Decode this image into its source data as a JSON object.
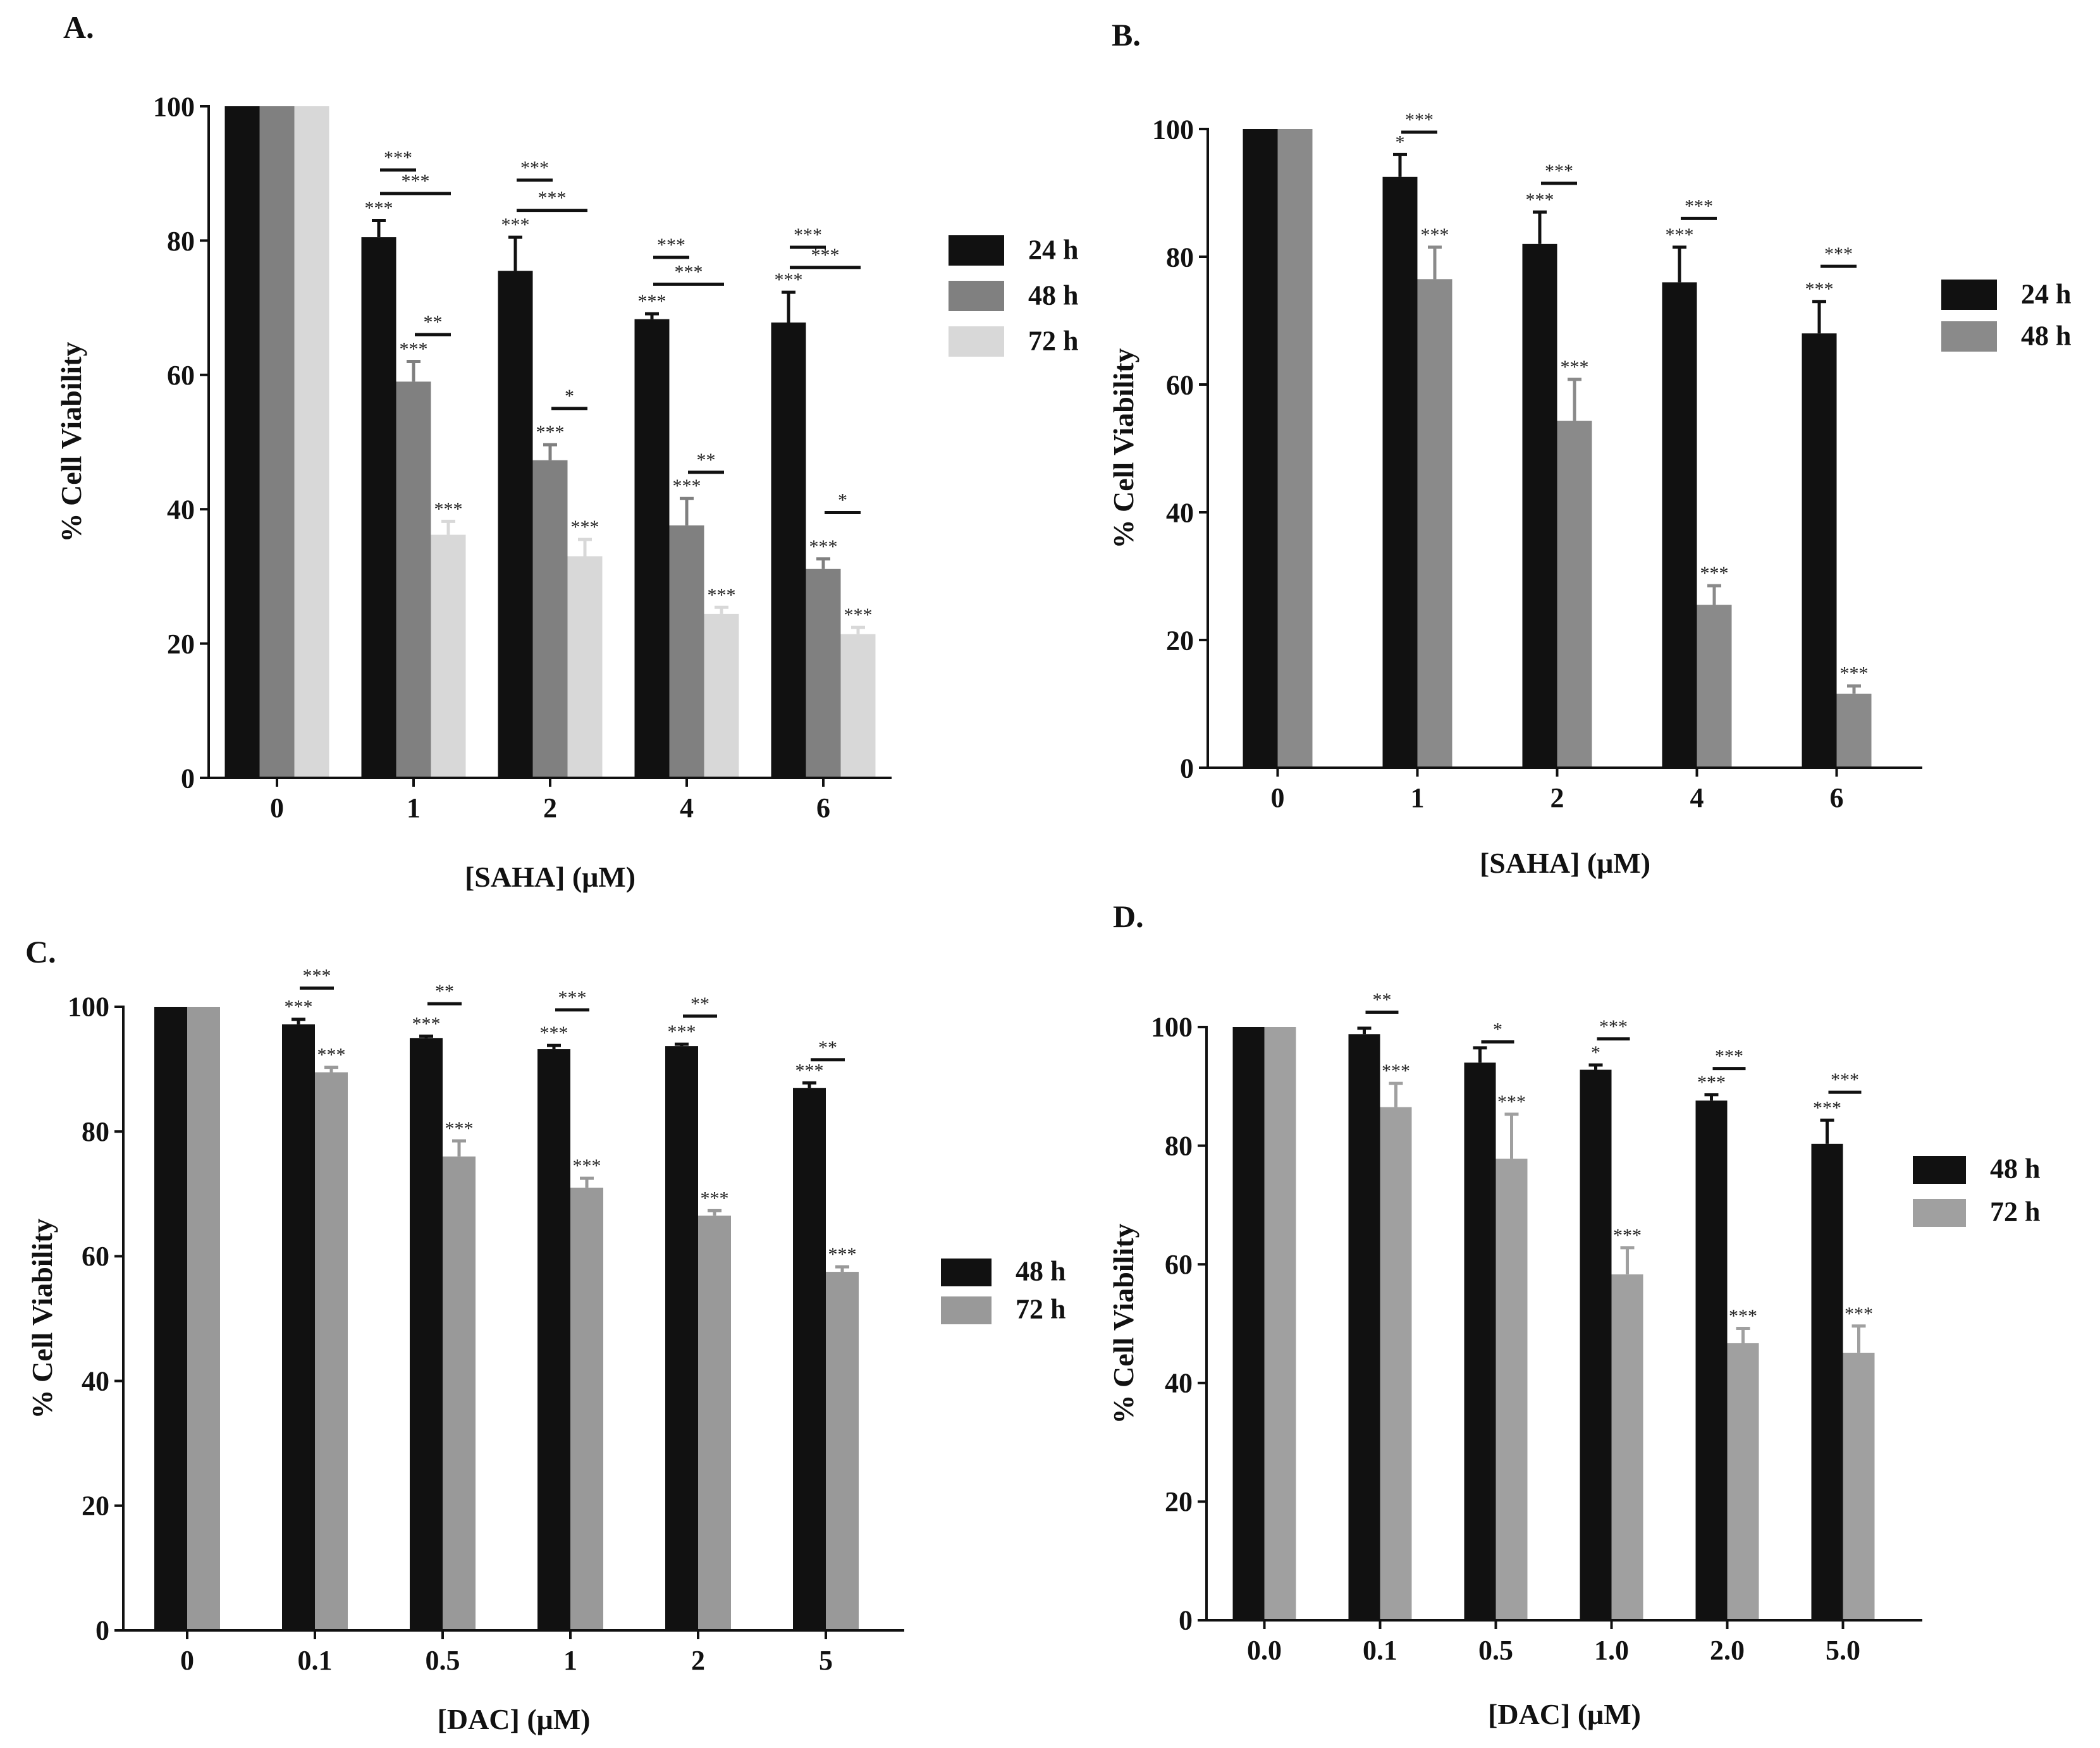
{
  "chart_data": [
    {
      "panel": "A.",
      "type": "bar",
      "xlabel": "[SAHA] (μM)",
      "ylabel": "% Cell Viability",
      "ylim": [
        0,
        100
      ],
      "yticks": [
        "0",
        "20",
        "40",
        "60",
        "80",
        "100"
      ],
      "categories": [
        "0",
        "1",
        "2",
        "4",
        "6"
      ],
      "legend_position": "right",
      "series": [
        {
          "name": "24 h",
          "color": "#111111",
          "values": [
            100,
            80.5,
            75.5,
            68.3,
            67.8
          ],
          "errors": [
            0,
            2.5,
            5.0,
            0.8,
            4.5
          ],
          "annotations": [
            "",
            "***",
            "***",
            "***",
            "***"
          ]
        },
        {
          "name": "48 h",
          "color": "#808080",
          "values": [
            100,
            59,
            47.3,
            37.6,
            31.1
          ],
          "errors": [
            0,
            3.0,
            2.3,
            4.0,
            1.5
          ],
          "annotations": [
            "",
            "***",
            "***",
            "***",
            "***"
          ]
        },
        {
          "name": "72 h",
          "color": "#d8d8d8",
          "values": [
            100,
            36.2,
            33.0,
            24.4,
            21.4
          ],
          "errors": [
            0,
            2.0,
            2.5,
            1.0,
            1.0
          ],
          "annotations": [
            "",
            "***",
            "***",
            "***",
            "***"
          ]
        }
      ],
      "comparisons": [
        {
          "category": 1,
          "from": 0,
          "to": 1,
          "label": "***",
          "y": 90.5
        },
        {
          "category": 1,
          "from": 0,
          "to": 2,
          "label": "***",
          "y": 87.0
        },
        {
          "category": 1,
          "from": 1,
          "to": 2,
          "label": "**",
          "y": 66.0
        },
        {
          "category": 2,
          "from": 0,
          "to": 1,
          "label": "***",
          "y": 89.0
        },
        {
          "category": 2,
          "from": 0,
          "to": 2,
          "label": "***",
          "y": 84.5
        },
        {
          "category": 2,
          "from": 1,
          "to": 2,
          "label": "*",
          "y": 55.0
        },
        {
          "category": 3,
          "from": 0,
          "to": 1,
          "label": "***",
          "y": 77.5
        },
        {
          "category": 3,
          "from": 0,
          "to": 2,
          "label": "***",
          "y": 73.5
        },
        {
          "category": 3,
          "from": 1,
          "to": 2,
          "label": "**",
          "y": 45.5
        },
        {
          "category": 4,
          "from": 0,
          "to": 1,
          "label": "***",
          "y": 79.0
        },
        {
          "category": 4,
          "from": 0,
          "to": 2,
          "label": "***",
          "y": 76.0
        },
        {
          "category": 4,
          "from": 1,
          "to": 2,
          "label": "*",
          "y": 39.5
        }
      ]
    },
    {
      "panel": "B.",
      "type": "bar",
      "xlabel": "[SAHA] (μM)",
      "ylabel": "% Cell Viability",
      "ylim": [
        0,
        100
      ],
      "yticks": [
        "0",
        "20",
        "40",
        "60",
        "80",
        "100"
      ],
      "categories": [
        "0",
        "1",
        "2",
        "4",
        "6"
      ],
      "legend_position": "right",
      "series": [
        {
          "name": "24 h",
          "color": "#111111",
          "values": [
            100,
            92.5,
            82,
            76,
            68
          ],
          "errors": [
            0,
            3.5,
            5.0,
            5.5,
            5.0
          ],
          "annotations": [
            "",
            "*",
            "***",
            "***",
            "***"
          ]
        },
        {
          "name": "48 h",
          "color": "#8a8a8a",
          "values": [
            100,
            76.5,
            54.3,
            25.5,
            11.6
          ],
          "errors": [
            0,
            5.0,
            6.5,
            3.0,
            1.2
          ],
          "annotations": [
            "",
            "***",
            "***",
            "***",
            "***"
          ]
        }
      ],
      "comparisons": [
        {
          "category": 1,
          "from": 0,
          "to": 1,
          "label": "***",
          "y": 99.5
        },
        {
          "category": 2,
          "from": 0,
          "to": 1,
          "label": "***",
          "y": 91.5
        },
        {
          "category": 3,
          "from": 0,
          "to": 1,
          "label": "***",
          "y": 86.0
        },
        {
          "category": 4,
          "from": 0,
          "to": 1,
          "label": "***",
          "y": 78.5
        }
      ]
    },
    {
      "panel": "C.",
      "type": "bar",
      "xlabel": "[DAC] (μM)",
      "ylabel": "% Cell Viability",
      "ylim": [
        0,
        100
      ],
      "yticks": [
        "0",
        "20",
        "40",
        "60",
        "80",
        "100"
      ],
      "categories": [
        "0",
        "0.1",
        "0.5",
        "1",
        "2",
        "5"
      ],
      "legend_position": "right",
      "series": [
        {
          "name": "48 h",
          "color": "#111111",
          "values": [
            100,
            97.2,
            95,
            93.2,
            93.7,
            87
          ],
          "errors": [
            0,
            0.8,
            0.3,
            0.6,
            0.3,
            0.8
          ],
          "annotations": [
            "",
            "***",
            "***",
            "***",
            "***",
            "***"
          ]
        },
        {
          "name": "72 h",
          "color": "#999999",
          "values": [
            100,
            89.5,
            76,
            71,
            66.5,
            57.5
          ],
          "errors": [
            0,
            0.8,
            2.5,
            1.5,
            0.8,
            0.8
          ],
          "annotations": [
            "",
            "***",
            "***",
            "***",
            "***",
            "***"
          ]
        }
      ],
      "comparisons": [
        {
          "category": 1,
          "from": 0,
          "to": 1,
          "label": "***",
          "y": 103
        },
        {
          "category": 2,
          "from": 0,
          "to": 1,
          "label": "**",
          "y": 100.5
        },
        {
          "category": 3,
          "from": 0,
          "to": 1,
          "label": "***",
          "y": 99.5
        },
        {
          "category": 4,
          "from": 0,
          "to": 1,
          "label": "**",
          "y": 98.5
        },
        {
          "category": 5,
          "from": 0,
          "to": 1,
          "label": "**",
          "y": 91.5
        }
      ]
    },
    {
      "panel": "D.",
      "type": "bar",
      "xlabel": "[DAC] (μM)",
      "ylabel": "% Cell Viability",
      "ylim": [
        0,
        100
      ],
      "yticks": [
        "0",
        "20",
        "40",
        "60",
        "80",
        "100"
      ],
      "categories": [
        "0.0",
        "0.1",
        "0.5",
        "1.0",
        "2.0",
        "5.0"
      ],
      "legend_position": "right",
      "series": [
        {
          "name": "48 h",
          "color": "#111111",
          "values": [
            100,
            98.8,
            94,
            92.8,
            87.6,
            80.3
          ],
          "errors": [
            0,
            1.0,
            2.5,
            0.8,
            1.0,
            4.0
          ],
          "annotations": [
            "",
            "",
            "",
            "*",
            "***",
            "***"
          ]
        },
        {
          "name": "72 h",
          "color": "#a0a0a0",
          "values": [
            100,
            86.5,
            77.8,
            58.3,
            46.7,
            45.1
          ],
          "errors": [
            0,
            4.0,
            7.5,
            4.5,
            2.5,
            4.5
          ],
          "annotations": [
            "",
            "***",
            "***",
            "***",
            "***",
            "***"
          ]
        }
      ],
      "comparisons": [
        {
          "category": 1,
          "from": 0,
          "to": 1,
          "label": "**",
          "y": 102.5
        },
        {
          "category": 2,
          "from": 0,
          "to": 1,
          "label": "*",
          "y": 97.5
        },
        {
          "category": 3,
          "from": 0,
          "to": 1,
          "label": "***",
          "y": 98.0
        },
        {
          "category": 4,
          "from": 0,
          "to": 1,
          "label": "***",
          "y": 93.0
        },
        {
          "category": 5,
          "from": 0,
          "to": 1,
          "label": "***",
          "y": 89.0
        }
      ]
    }
  ]
}
